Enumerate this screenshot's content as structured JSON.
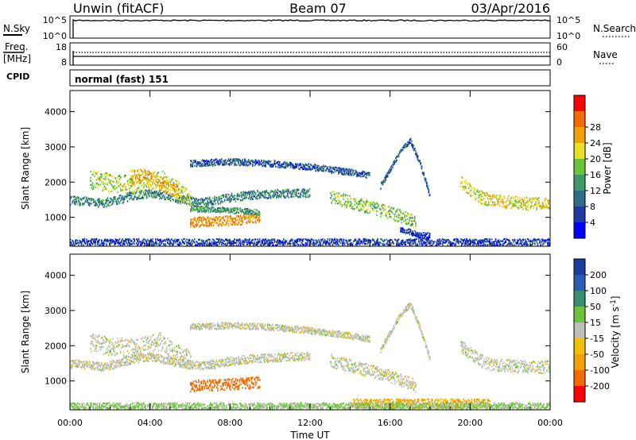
{
  "header": {
    "station": "Unwin (fitACF)",
    "beam": "Beam 07",
    "date": "03/Apr/2016"
  },
  "panels": {
    "nsky": {
      "left_label": "N.Sky",
      "right_label": "N.Search",
      "ticks_left": [
        "10^5",
        "10^0"
      ],
      "ticks_right": [
        "10^5",
        "10^0"
      ]
    },
    "freq": {
      "left_label_1": "Freq.",
      "left_label_2": "[MHz]",
      "right_label": "Nave",
      "ticks_left": [
        "18",
        "8"
      ],
      "ticks_right": [
        "60",
        "0"
      ]
    },
    "cpid": {
      "label": "CPID",
      "text": "normal (fast) 151"
    }
  },
  "chart_data": [
    {
      "type": "heatmap",
      "title": "Power",
      "x": [
        "00:00",
        "04:00",
        "08:00",
        "12:00",
        "16:00",
        "20:00",
        "00:00"
      ],
      "ylabel": "Slant Range [km]",
      "y_ticks": [
        1000,
        2000,
        3000,
        4000
      ],
      "ylim": [
        180,
        4600
      ],
      "colorbar": {
        "label": "Power [dB]",
        "ticks": [
          4,
          8,
          12,
          16,
          20,
          24,
          28
        ],
        "colors": [
          "#0000ff",
          "#1e3ca0",
          "#2e6e8c",
          "#3e9a6a",
          "#6cc43a",
          "#e8e020",
          "#f2a000",
          "#f26a00",
          "#ff0000"
        ]
      },
      "bands": [
        {
          "t": [
            0.0,
            0.8,
            1.6,
            2.4,
            3.2,
            4.0,
            4.8,
            5.6,
            6.4,
            7.2,
            8.0,
            9.0,
            10.0,
            11.0,
            12.0
          ],
          "r": [
            1500,
            1480,
            1420,
            1520,
            1650,
            1700,
            1620,
            1520,
            1450,
            1500,
            1580,
            1650,
            1680,
            1700,
            1720
          ],
          "w": 120,
          "v": 12
        },
        {
          "t": [
            1.0,
            2.0,
            3.0,
            4.0,
            4.5,
            5.0,
            5.5,
            6.0
          ],
          "r": [
            2100,
            2000,
            1950,
            2050,
            2150,
            1900,
            1750,
            1600
          ],
          "w": 260,
          "v": 20
        },
        {
          "t": [
            3.0,
            3.6,
            4.2,
            4.8,
            5.4
          ],
          "r": [
            2150,
            2200,
            2100,
            1850,
            1750
          ],
          "w": 200,
          "v": 26
        },
        {
          "t": [
            6.0,
            7.0,
            8.0,
            9.0,
            9.5
          ],
          "r": [
            880,
            900,
            930,
            960,
            980
          ],
          "w": 140,
          "v": 28
        },
        {
          "t": [
            6.0,
            7.0,
            8.0,
            9.0,
            9.5
          ],
          "r": [
            1260,
            1250,
            1220,
            1180,
            1150
          ],
          "w": 80,
          "v": 14
        },
        {
          "t": [
            6.0,
            8.0,
            10.0,
            12.0,
            14.0,
            15.0
          ],
          "r": [
            2550,
            2600,
            2550,
            2450,
            2300,
            2200
          ],
          "w": 90,
          "v": 8
        },
        {
          "t": [
            13.0,
            14.0,
            15.0,
            16.0,
            16.8,
            17.3
          ],
          "r": [
            1600,
            1450,
            1300,
            1150,
            1000,
            850
          ],
          "w": 180,
          "v": 18
        },
        {
          "t": [
            15.5,
            16.0,
            16.5,
            17.0,
            17.5,
            18.0
          ],
          "r": [
            1900,
            2400,
            2900,
            3200,
            2500,
            1600
          ],
          "w": 70,
          "v": 8
        },
        {
          "t": [
            16.5,
            17.0,
            17.5,
            18.0
          ],
          "r": [
            700,
            600,
            520,
            480
          ],
          "w": 90,
          "v": 6
        },
        {
          "t": [
            19.5,
            20.0,
            20.5,
            21.0,
            22.0,
            23.0,
            24.0
          ],
          "r": [
            2000,
            1800,
            1600,
            1500,
            1450,
            1400,
            1420
          ],
          "w": 180,
          "v": 22
        },
        {
          "t": [
            0.0,
            4.0,
            8.0,
            12.0,
            16.0,
            20.0,
            24.0
          ],
          "r": [
            300,
            300,
            300,
            300,
            300,
            300,
            300
          ],
          "w": 110,
          "v": 6
        }
      ]
    },
    {
      "type": "heatmap",
      "title": "Velocity",
      "x": [
        "00:00",
        "04:00",
        "08:00",
        "12:00",
        "16:00",
        "20:00",
        "00:00"
      ],
      "xlabel": "Time UT",
      "ylabel": "Slant Range [km]",
      "y_ticks": [
        1000,
        2000,
        3000,
        4000
      ],
      "ylim": [
        180,
        4600
      ],
      "colorbar": {
        "label": "Velocity [m s^-1]",
        "ticks": [
          "200",
          "100",
          "50",
          "15",
          "-15",
          "-50",
          "-100",
          "-200"
        ],
        "colors": [
          "#1c3ca0",
          "#2a5cb4",
          "#3a8c70",
          "#6cc43a",
          "#c0c0b8",
          "#f0c000",
          "#f2a000",
          "#f26a00",
          "#ff0000"
        ]
      },
      "bands": [
        {
          "t": [
            0.0,
            0.8,
            1.6,
            2.4,
            3.2,
            4.0,
            4.8,
            5.6,
            6.4,
            7.2,
            8.0,
            9.0,
            10.0,
            11.0,
            12.0
          ],
          "r": [
            1500,
            1480,
            1420,
            1520,
            1650,
            1700,
            1620,
            1520,
            1450,
            1500,
            1580,
            1650,
            1680,
            1700,
            1720
          ],
          "w": 120,
          "v": 0
        },
        {
          "t": [
            1.0,
            2.0,
            3.0,
            4.0,
            4.5,
            5.0,
            5.5,
            6.0
          ],
          "r": [
            2100,
            2000,
            1950,
            2050,
            2150,
            1900,
            1750,
            1600
          ],
          "w": 260,
          "v": 0
        },
        {
          "t": [
            6.0,
            7.0,
            8.0,
            9.0,
            9.5
          ],
          "r": [
            880,
            900,
            930,
            960,
            980
          ],
          "w": 160,
          "v": -180
        },
        {
          "t": [
            6.0,
            8.0,
            10.0,
            12.0,
            14.0,
            15.0
          ],
          "r": [
            2550,
            2600,
            2550,
            2450,
            2300,
            2200
          ],
          "w": 90,
          "v": 0
        },
        {
          "t": [
            13.0,
            14.0,
            15.0,
            16.0,
            16.8,
            17.3
          ],
          "r": [
            1600,
            1450,
            1300,
            1150,
            1000,
            850
          ],
          "w": 180,
          "v": 0
        },
        {
          "t": [
            15.5,
            16.0,
            16.5,
            17.0,
            17.5,
            18.0
          ],
          "r": [
            1900,
            2400,
            2900,
            3200,
            2500,
            1600
          ],
          "w": 70,
          "v": 0
        },
        {
          "t": [
            19.5,
            20.0,
            20.5,
            21.0,
            22.0,
            23.0,
            24.0
          ],
          "r": [
            2000,
            1800,
            1600,
            1500,
            1450,
            1400,
            1420
          ],
          "w": 180,
          "v": 0
        },
        {
          "t": [
            14.0,
            16.0,
            18.0,
            19.5,
            21.0
          ],
          "r": [
            380,
            380,
            380,
            380,
            380
          ],
          "w": 130,
          "v": -60
        },
        {
          "t": [
            0.0,
            4.0,
            8.0,
            12.0,
            16.0,
            20.0,
            24.0
          ],
          "r": [
            300,
            300,
            300,
            300,
            300,
            300,
            300
          ],
          "w": 100,
          "v": 20
        }
      ]
    }
  ]
}
